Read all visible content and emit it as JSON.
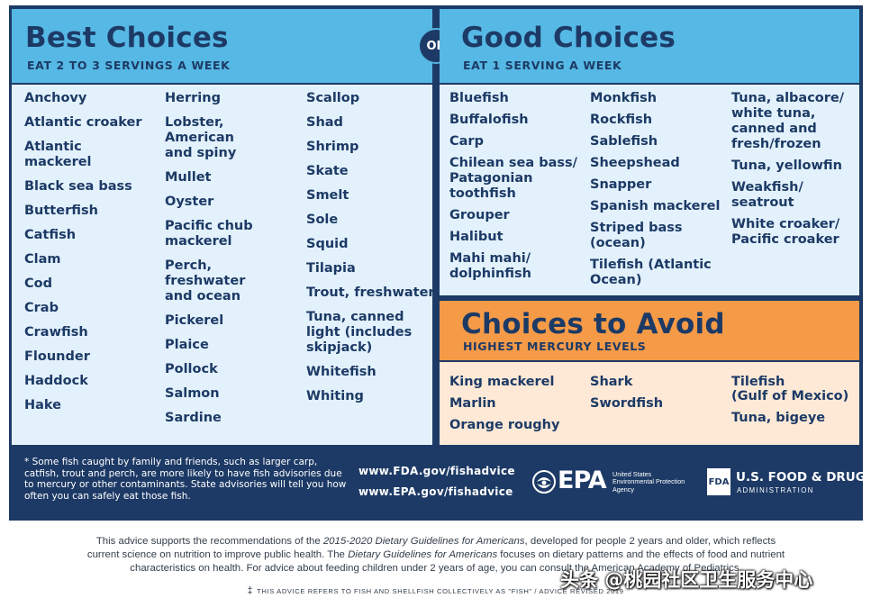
{
  "best": {
    "title": "Best Choices",
    "subtitle": "EAT 2 TO 3 SERVINGS A WEEK",
    "col1": [
      "Anchovy",
      "Atlantic croaker",
      "Atlantic\nmackerel",
      "Black sea bass",
      "Butterfish",
      "Catfish",
      "Clam",
      "Cod",
      "Crab",
      "Crawfish",
      "Flounder",
      "Haddock",
      "Hake"
    ],
    "col2": [
      "Herring",
      "Lobster,\nAmerican\nand spiny",
      "Mullet",
      "Oyster",
      "Pacific chub\nmackerel",
      "Perch,\nfreshwater\nand ocean",
      "Pickerel",
      "Plaice",
      "Pollock",
      "Salmon",
      "Sardine"
    ],
    "col3": [
      "Scallop",
      "Shad",
      "Shrimp",
      "Skate",
      "Smelt",
      "Sole",
      "Squid",
      "Tilapia",
      "Trout, freshwater",
      "Tuna, canned\nlight (includes\nskipjack)",
      "Whitefish",
      "Whiting"
    ]
  },
  "or_label": "OR",
  "good": {
    "title": "Good Choices",
    "subtitle": "EAT 1 SERVING A WEEK",
    "col1": [
      "Bluefish",
      "Buffalofish",
      "Carp",
      "Chilean sea bass/\nPatagonian\ntoothfish",
      "Grouper",
      "Halibut",
      "Mahi mahi/\ndolphinfish"
    ],
    "col2": [
      "Monkfish",
      "Rockfish",
      "Sablefish",
      "Sheepshead",
      "Snapper",
      "Spanish mackerel",
      "Striped bass\n(ocean)",
      "Tilefish (Atlantic\nOcean)"
    ],
    "col3": [
      "Tuna, albacore/\nwhite tuna,\ncanned and\nfresh/frozen",
      "Tuna, yellowfin",
      "Weakfish/\nseatrout",
      "White croaker/\nPacific croaker"
    ]
  },
  "avoid": {
    "title": "Choices to Avoid",
    "subtitle": "HIGHEST MERCURY LEVELS",
    "col1": [
      "King mackerel",
      "Marlin",
      "Orange roughy"
    ],
    "col2": [
      "Shark",
      "Swordfish"
    ],
    "col3": [
      "Tilefish\n(Gulf of Mexico)",
      "Tuna, bigeye"
    ]
  },
  "footer": {
    "footnote": "* Some fish caught by family and friends, such as larger carp, catfish, trout and perch, are more likely to have fish advisories due to mercury or other contaminants. State advisories will tell you how often you can safely eat those fish.",
    "url_fda": "www.FDA.gov/fishadvice",
    "url_epa": "www.EPA.gov/fishadvice",
    "epa_mark": "EPA",
    "epa_name": "United States\nEnvironmental Protection\nAgency",
    "fda_badge": "FDA",
    "fda_name": "U.S. FOOD & DRUG",
    "fda_sub": "ADMINISTRATION"
  },
  "bottom": {
    "line1_a": "This advice supports the recommendations of the ",
    "line1_i": "2015-2020 Dietary Guidelines for Americans",
    "line1_b": ", developed for people 2 years and older, which reflects",
    "line2_a": "current science on nutrition to improve public health. The ",
    "line2_i": "Dietary Guidelines for Americans",
    "line2_b": " focuses on dietary patterns and the effects of food and nutrient",
    "line3": "characteristics on health. For advice about feeding children under 2 years of age, you can consult the American Academy of Pediatrics.",
    "note": "THIS ADVICE REFERS TO FISH AND SHELLFISH COLLECTIVELY AS \"FISH\" / ADVICE REVISED 2019"
  },
  "watermark": "头条 @桃园社区卫生服务中心",
  "colors": {
    "navy": "#1d3a66",
    "sky": "#56b8e4",
    "pale_blue": "#e2f1fb",
    "orange": "#f59a47",
    "peach": "#fde9d6"
  }
}
